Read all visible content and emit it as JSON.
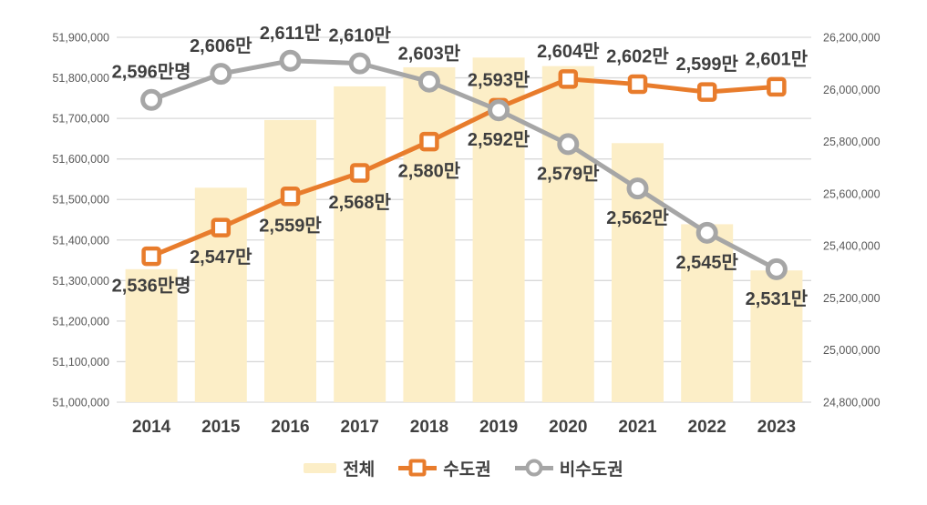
{
  "chart_data": {
    "type": "bar",
    "subtype": "combo-bar-line-dual-axis",
    "title": "",
    "categories": [
      "2014",
      "2015",
      "2016",
      "2017",
      "2018",
      "2019",
      "2020",
      "2021",
      "2022",
      "2023"
    ],
    "left_axis": {
      "ticks": [
        "51,000,000",
        "51,100,000",
        "51,200,000",
        "51,300,000",
        "51,400,000",
        "51,500,000",
        "51,600,000",
        "51,700,000",
        "51,800,000",
        "51,900,000"
      ],
      "min": 51000000,
      "max": 51900000,
      "step": 100000
    },
    "right_axis": {
      "ticks": [
        "24,800,000",
        "25,000,000",
        "25,200,000",
        "25,400,000",
        "25,600,000",
        "25,800,000",
        "26,000,000",
        "26,200,000"
      ],
      "min": 24800000,
      "max": 26200000,
      "step": 200000
    },
    "grid": true,
    "legend_position": "bottom",
    "series": [
      {
        "name": "전체",
        "type": "bar",
        "axis": "left",
        "color": "#FCEEC7",
        "values": [
          51328000,
          51529000,
          51696000,
          51779000,
          51826000,
          51850000,
          51829000,
          51639000,
          51439000,
          51325000
        ]
      },
      {
        "name": "수도권",
        "type": "line",
        "axis": "right",
        "marker": "square",
        "color": "#E87C2C",
        "values": [
          25360000,
          25470000,
          25590000,
          25680000,
          25800000,
          25930000,
          26040000,
          26020000,
          25990000,
          26010000
        ],
        "labels": [
          "2,536만명",
          "2,547만",
          "2,559만",
          "2,568만",
          "2,580만",
          "2,593만",
          "2,604만",
          "2,602만",
          "2,599만",
          "2,601만"
        ],
        "label_side": [
          "below",
          "below",
          "below",
          "below",
          "below",
          "above",
          "above",
          "above",
          "above",
          "above"
        ]
      },
      {
        "name": "비수도권",
        "type": "line",
        "axis": "right",
        "marker": "circle",
        "color": "#A6A6A6",
        "values": [
          25960000,
          26060000,
          26110000,
          26100000,
          26030000,
          25920000,
          25790000,
          25620000,
          25450000,
          25310000
        ],
        "labels": [
          "2,596만명",
          "2,606만",
          "2,611만",
          "2,610만",
          "2,603만",
          "2,592만",
          "2,579만",
          "2,562만",
          "2,545만",
          "2,531만"
        ],
        "label_side": [
          "above",
          "above",
          "above",
          "above",
          "above",
          "below",
          "below",
          "below",
          "below",
          "below"
        ]
      }
    ]
  },
  "colors": {
    "bar_fill": "#FCEEC7",
    "line_metro": "#E87C2C",
    "line_nonmetro": "#A6A6A6",
    "gridline": "#D9D9D9",
    "axis_text": "#595959",
    "label_text": "#3F3F3F",
    "year_text": "#404040"
  },
  "legend": {
    "total_label": "전체",
    "metro_label": "수도권",
    "nonmetro_label": "비수도권"
  }
}
